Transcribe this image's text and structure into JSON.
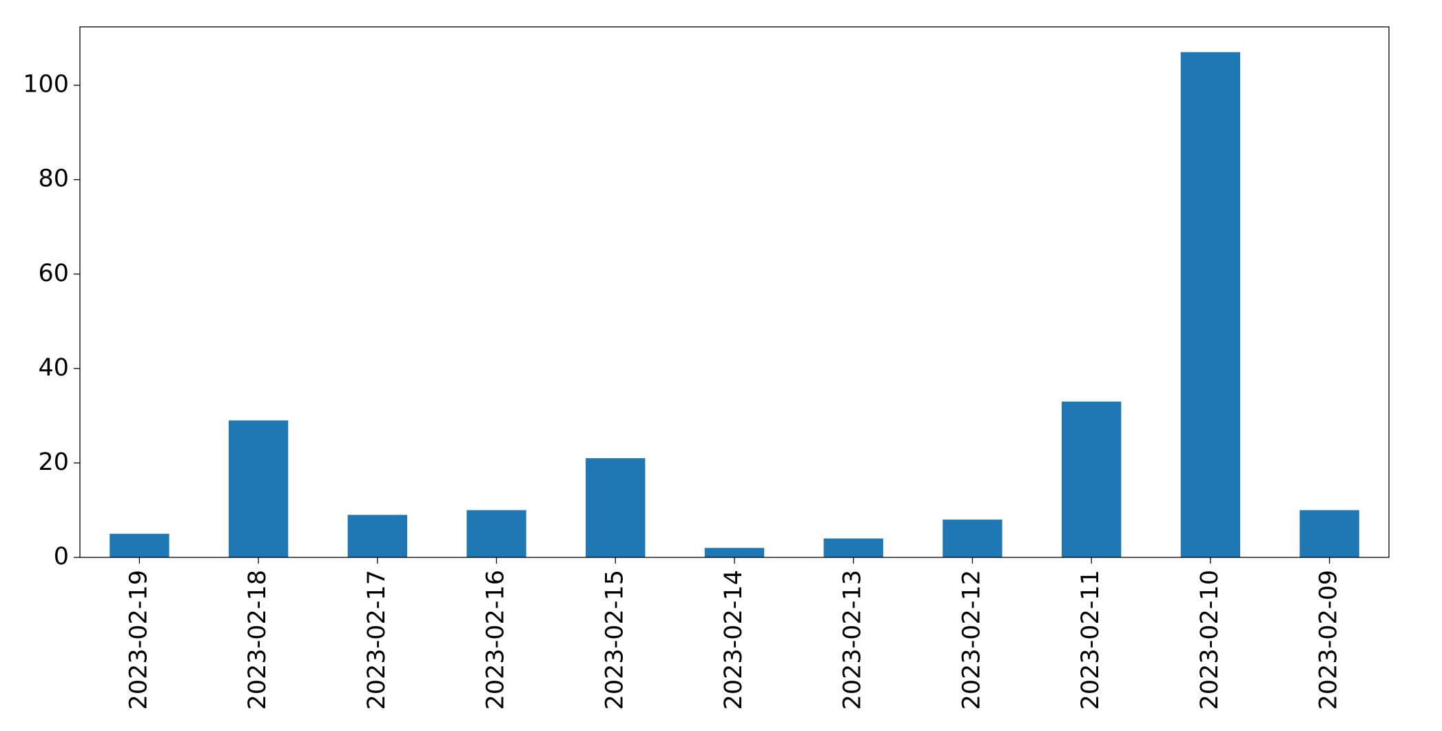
{
  "chart_data": {
    "type": "bar",
    "categories": [
      "2023-02-19",
      "2023-02-18",
      "2023-02-17",
      "2023-02-16",
      "2023-02-15",
      "2023-02-14",
      "2023-02-13",
      "2023-02-12",
      "2023-02-11",
      "2023-02-10",
      "2023-02-09"
    ],
    "values": [
      5,
      29,
      9,
      10,
      21,
      2,
      4,
      8,
      33,
      107,
      10
    ],
    "color": "#1f77b4",
    "ylim": [
      0,
      112.35
    ],
    "yticks": [
      0,
      20,
      40,
      60,
      80,
      100
    ],
    "grid": false
  }
}
